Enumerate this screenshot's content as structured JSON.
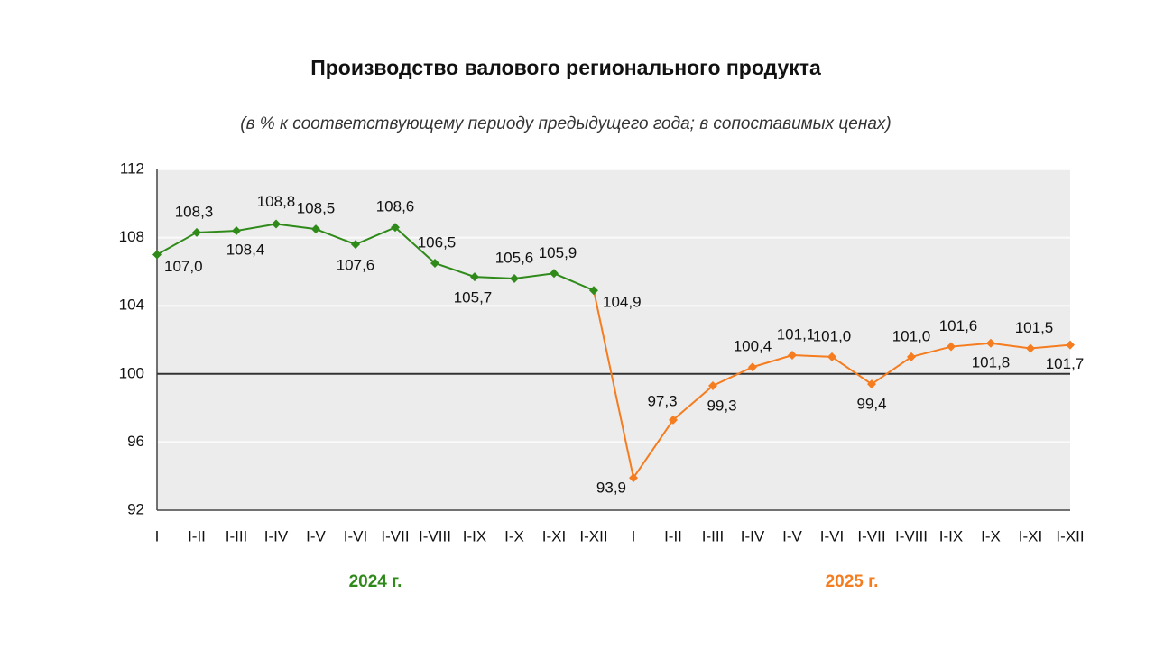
{
  "chart_data": {
    "type": "line",
    "title": "Производство валового регионального продукта",
    "subtitle": "(в % к соответствующему периоду предыдущего года; в сопоставимых ценах)",
    "categories": [
      "I",
      "I-II",
      "I-III",
      "I-IV",
      "I-V",
      "I-VI",
      "I-VII",
      "I-VIII",
      "I-IX",
      "I-X",
      "I-XI",
      "I-XII",
      "I",
      "I-II",
      "I-III",
      "I-IV",
      "I-V",
      "I-VI",
      "I-VII",
      "I-VIII",
      "I-IX",
      "I-X",
      "I-XI",
      "I-XII"
    ],
    "series": [
      {
        "name": "2024 г.",
        "color": "#2f8a1a",
        "values": [
          107.0,
          108.3,
          108.4,
          108.8,
          108.5,
          107.6,
          108.6,
          106.5,
          105.7,
          105.6,
          105.9,
          104.9,
          null,
          null,
          null,
          null,
          null,
          null,
          null,
          null,
          null,
          null,
          null,
          null
        ],
        "value_labels": [
          "107,0",
          "108,3",
          "108,4",
          "108,8",
          "108,5",
          "107,6",
          "108,6",
          "106,5",
          "105,7",
          "105,6",
          "105,9",
          "104,9",
          null,
          null,
          null,
          null,
          null,
          null,
          null,
          null,
          null,
          null,
          null,
          null
        ]
      },
      {
        "name": "2025 г.",
        "color": "#f57c1f",
        "values": [
          null,
          null,
          null,
          null,
          null,
          null,
          null,
          null,
          null,
          null,
          null,
          null,
          93.9,
          97.3,
          99.3,
          100.4,
          101.1,
          101.0,
          99.4,
          101.0,
          101.6,
          101.8,
          101.5,
          101.7
        ],
        "value_labels": [
          null,
          null,
          null,
          null,
          null,
          null,
          null,
          null,
          null,
          null,
          null,
          null,
          "93,9",
          "97,3",
          "99,3",
          "100,4",
          "101,1",
          "101,0",
          "99,4",
          "101,0",
          "101,6",
          "101,8",
          "101,5",
          "101,7"
        ]
      }
    ],
    "ylim": [
      92,
      112
    ],
    "yticks": [
      92,
      96,
      100,
      104,
      108,
      112
    ],
    "grid": true,
    "baseline": 100
  }
}
